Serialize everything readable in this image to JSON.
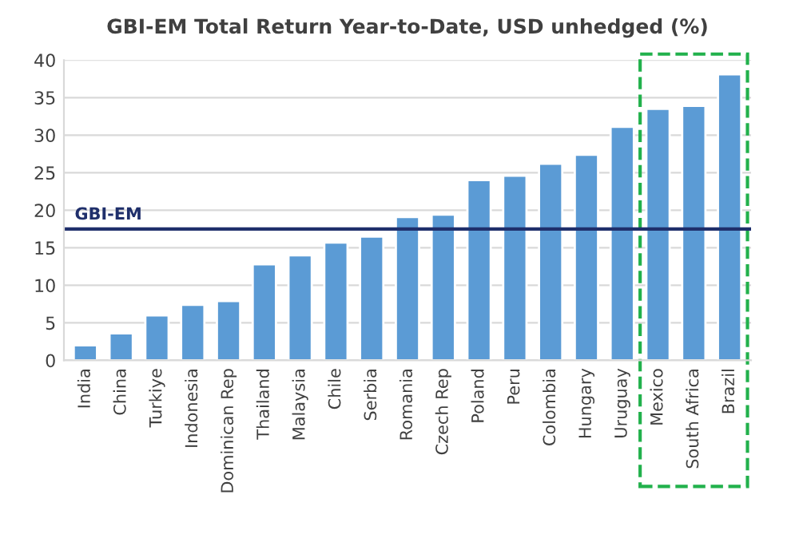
{
  "chart_data": {
    "type": "bar",
    "title": "GBI-EM Total Return Year-to-Date, USD unhedged (%)",
    "categories": [
      "India",
      "China",
      "Turkiye",
      "Indonesia",
      "Dominican Rep",
      "Thailand",
      "Malaysia",
      "Chile",
      "Serbia",
      "Romania",
      "Czech Rep",
      "Poland",
      "Peru",
      "Colombia",
      "Hungary",
      "Uruguay",
      "Mexico",
      "South Africa",
      "Brazil"
    ],
    "values": [
      2.0,
      3.6,
      6.0,
      7.4,
      7.9,
      12.8,
      14.0,
      15.7,
      16.5,
      19.1,
      19.4,
      24.0,
      24.6,
      26.2,
      27.4,
      31.1,
      33.5,
      33.9,
      38.1
    ],
    "color": "#5b9bd5",
    "ylim": [
      0,
      40
    ],
    "yticks": [
      0,
      5,
      10,
      15,
      20,
      25,
      30,
      35,
      40
    ],
    "grid": "y",
    "ref_lines": [
      {
        "axis": "y",
        "value": 17.5,
        "label": "GBI-EM",
        "color": "#1f2f6b",
        "line_style": "solid"
      }
    ]
  }
}
